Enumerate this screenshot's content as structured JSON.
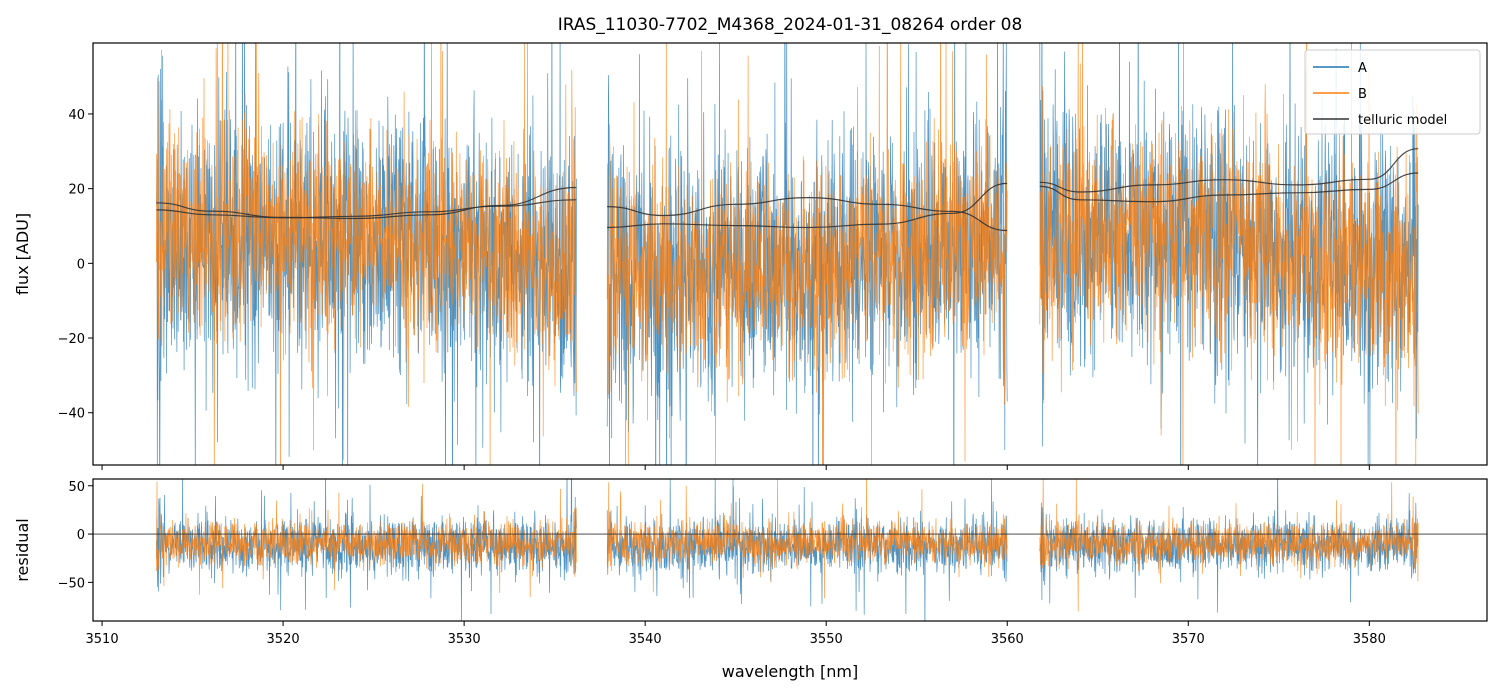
{
  "chart_data": [
    {
      "panel": "spectrum",
      "type": "line",
      "title": "IRAS_11030-7702_M4368_2024-01-31_08264  order 08",
      "xlabel": "",
      "ylabel": "flux [ADU]",
      "xlim": [
        3509.5,
        3586.5
      ],
      "ylim": [
        -54,
        59
      ],
      "yticks": [
        -40,
        -20,
        0,
        20,
        40
      ],
      "xticks": [
        3510,
        3520,
        3530,
        3540,
        3550,
        3560,
        3570,
        3580
      ],
      "legend_position": "top-right",
      "segments": [
        [
          3513.0,
          3536.2
        ],
        [
          3537.9,
          3560.0
        ],
        [
          3561.8,
          3582.7
        ]
      ],
      "series": [
        {
          "name": "A",
          "color": "#1f77b4",
          "kind": "noisy spectrum",
          "baseline": 2,
          "scatter": 22
        },
        {
          "name": "B",
          "color": "#ff7f0e",
          "kind": "noisy spectrum",
          "baseline": 3,
          "scatter": 18
        },
        {
          "name": "telluric model",
          "color": "#333333",
          "kind": "smooth model",
          "curves": [
            {
              "x": [
                3513,
                3516,
                3520,
                3524,
                3528,
                3532,
                3536.2
              ],
              "y": [
                16.2,
                14.0,
                12.3,
                12.0,
                13.0,
                15.5,
                20.3
              ]
            },
            {
              "x": [
                3513,
                3516,
                3520,
                3524,
                3528,
                3532,
                3536.2
              ],
              "y": [
                14.3,
                13.0,
                12.2,
                12.6,
                13.8,
                15.3,
                17.0
              ]
            },
            {
              "x": [
                3537.9,
                3541,
                3545,
                3549,
                3553,
                3557,
                3560
              ],
              "y": [
                15.2,
                12.8,
                15.8,
                17.6,
                15.8,
                13.9,
                8.8
              ]
            },
            {
              "x": [
                3537.9,
                3541,
                3545,
                3549,
                3553,
                3557,
                3560
              ],
              "y": [
                9.6,
                10.6,
                10.1,
                9.6,
                10.5,
                13.4,
                21.4
              ]
            },
            {
              "x": [
                3561.8,
                3564,
                3568,
                3572,
                3576,
                3580,
                3582.7
              ],
              "y": [
                21.7,
                19.1,
                21.0,
                22.4,
                21.0,
                22.5,
                30.7
              ]
            },
            {
              "x": [
                3561.8,
                3564,
                3568,
                3572,
                3576,
                3580,
                3582.7
              ],
              "y": [
                20.6,
                17.0,
                16.5,
                18.3,
                18.9,
                19.8,
                24.2
              ]
            }
          ]
        }
      ]
    },
    {
      "panel": "residual",
      "type": "line",
      "title": "",
      "xlabel": "wavelength [nm]",
      "ylabel": "residual",
      "xlim": [
        3509.5,
        3586.5
      ],
      "ylim": [
        -90,
        57
      ],
      "yticks": [
        -50,
        0,
        50
      ],
      "xticks": [
        3510,
        3520,
        3530,
        3540,
        3550,
        3560,
        3570,
        3580
      ],
      "reference_line": 0,
      "segments": [
        [
          3513.0,
          3536.2
        ],
        [
          3537.9,
          3560.0
        ],
        [
          3561.8,
          3582.7
        ]
      ],
      "series": [
        {
          "name": "A",
          "color": "#1f77b4",
          "kind": "noisy residual",
          "baseline": -12,
          "scatter": 18
        },
        {
          "name": "B",
          "color": "#ff7f0e",
          "kind": "noisy residual",
          "baseline": -9,
          "scatter": 14
        }
      ]
    }
  ]
}
